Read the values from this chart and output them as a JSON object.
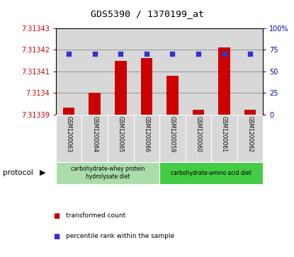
{
  "title": "GDS5390 / 1370199_at",
  "samples": [
    "GSM1200063",
    "GSM1200064",
    "GSM1200065",
    "GSM1200066",
    "GSM1200059",
    "GSM1200060",
    "GSM1200061",
    "GSM1200062"
  ],
  "bar_values": [
    7.313393,
    7.3134,
    7.313415,
    7.313416,
    7.313408,
    7.313392,
    7.313421,
    7.313392
  ],
  "bar_base": 7.31339,
  "percentile_values": [
    70,
    70,
    70,
    70,
    70,
    70,
    70,
    70
  ],
  "ylim_left": [
    7.31339,
    7.31343
  ],
  "ylim_right": [
    0,
    100
  ],
  "yticks_left": [
    7.31339,
    7.3134,
    7.31341,
    7.31342,
    7.31343
  ],
  "yticks_right": [
    0,
    25,
    50,
    75,
    100
  ],
  "ytick_labels_left": [
    "7.31339",
    "7.3134",
    "7.31341",
    "7.31342",
    "7.31343"
  ],
  "ytick_labels_right": [
    "0",
    "25",
    "50",
    "75",
    "100%"
  ],
  "bar_color": "#cc0000",
  "dot_color": "#3333cc",
  "grid_color": "#000000",
  "col_bg_color": "#d8d8d8",
  "protocol_groups": [
    {
      "label": "carbohydrate-whey protein\nhydrolysate diet",
      "indices": [
        0,
        1,
        2,
        3
      ],
      "color": "#aaddaa"
    },
    {
      "label": "carbohydrate-amino acid diet",
      "indices": [
        4,
        5,
        6,
        7
      ],
      "color": "#44cc44"
    }
  ],
  "protocol_label": "protocol",
  "legend_items": [
    {
      "color": "#cc0000",
      "label": "transformed count"
    },
    {
      "color": "#3333cc",
      "label": "percentile rank within the sample"
    }
  ],
  "fig_bg": "#ffffff"
}
